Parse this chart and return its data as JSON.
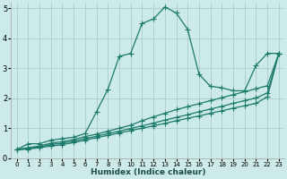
{
  "xlabel": "Humidex (Indice chaleur)",
  "ylabel": "",
  "bg_color": "#cceae8",
  "grid_color": "#aacccc",
  "line_color": "#1a7a6a",
  "xlim": [
    -0.5,
    23.5
  ],
  "ylim": [
    0,
    5.2
  ],
  "xticks": [
    0,
    1,
    2,
    3,
    4,
    5,
    6,
    7,
    8,
    9,
    10,
    11,
    12,
    13,
    14,
    15,
    16,
    17,
    18,
    19,
    20,
    21,
    22,
    23
  ],
  "yticks": [
    0,
    1,
    2,
    3,
    4,
    5
  ],
  "series": [
    {
      "x": [
        0,
        1,
        2,
        3,
        4,
        5,
        6,
        7,
        8,
        9,
        10,
        11,
        12,
        13,
        14,
        15,
        16,
        17,
        18,
        19,
        20,
        21,
        22,
        23
      ],
      "y": [
        0.28,
        0.48,
        0.48,
        0.6,
        0.65,
        0.7,
        0.82,
        1.55,
        2.3,
        3.4,
        3.5,
        4.5,
        4.65,
        5.05,
        4.85,
        4.3,
        2.8,
        2.4,
        2.35,
        2.25,
        2.25,
        3.1,
        3.5,
        3.5
      ]
    },
    {
      "x": [
        0,
        1,
        2,
        3,
        4,
        5,
        6,
        7,
        8,
        9,
        10,
        11,
        12,
        13,
        14,
        15,
        16,
        17,
        18,
        19,
        20,
        21,
        22,
        23
      ],
      "y": [
        0.28,
        0.35,
        0.4,
        0.5,
        0.55,
        0.62,
        0.72,
        0.8,
        0.9,
        1.0,
        1.1,
        1.25,
        1.38,
        1.5,
        1.62,
        1.72,
        1.82,
        1.92,
        2.02,
        2.12,
        2.22,
        2.32,
        2.42,
        3.5
      ]
    },
    {
      "x": [
        0,
        1,
        2,
        3,
        4,
        5,
        6,
        7,
        8,
        9,
        10,
        11,
        12,
        13,
        14,
        15,
        16,
        17,
        18,
        19,
        20,
        21,
        22,
        23
      ],
      "y": [
        0.28,
        0.33,
        0.38,
        0.45,
        0.5,
        0.57,
        0.65,
        0.73,
        0.82,
        0.9,
        0.99,
        1.08,
        1.17,
        1.27,
        1.36,
        1.45,
        1.55,
        1.64,
        1.73,
        1.83,
        1.92,
        2.01,
        2.18,
        3.5
      ]
    },
    {
      "x": [
        0,
        1,
        2,
        3,
        4,
        5,
        6,
        7,
        8,
        9,
        10,
        11,
        12,
        13,
        14,
        15,
        16,
        17,
        18,
        19,
        20,
        21,
        22,
        23
      ],
      "y": [
        0.28,
        0.3,
        0.35,
        0.4,
        0.45,
        0.52,
        0.6,
        0.68,
        0.76,
        0.84,
        0.92,
        1.0,
        1.08,
        1.16,
        1.25,
        1.33,
        1.41,
        1.5,
        1.58,
        1.67,
        1.75,
        1.83,
        2.05,
        3.5
      ]
    }
  ],
  "marker": "+",
  "markersize": 4,
  "linewidth": 0.9,
  "tick_fontsize": 5.5,
  "xlabel_fontsize": 6.5
}
